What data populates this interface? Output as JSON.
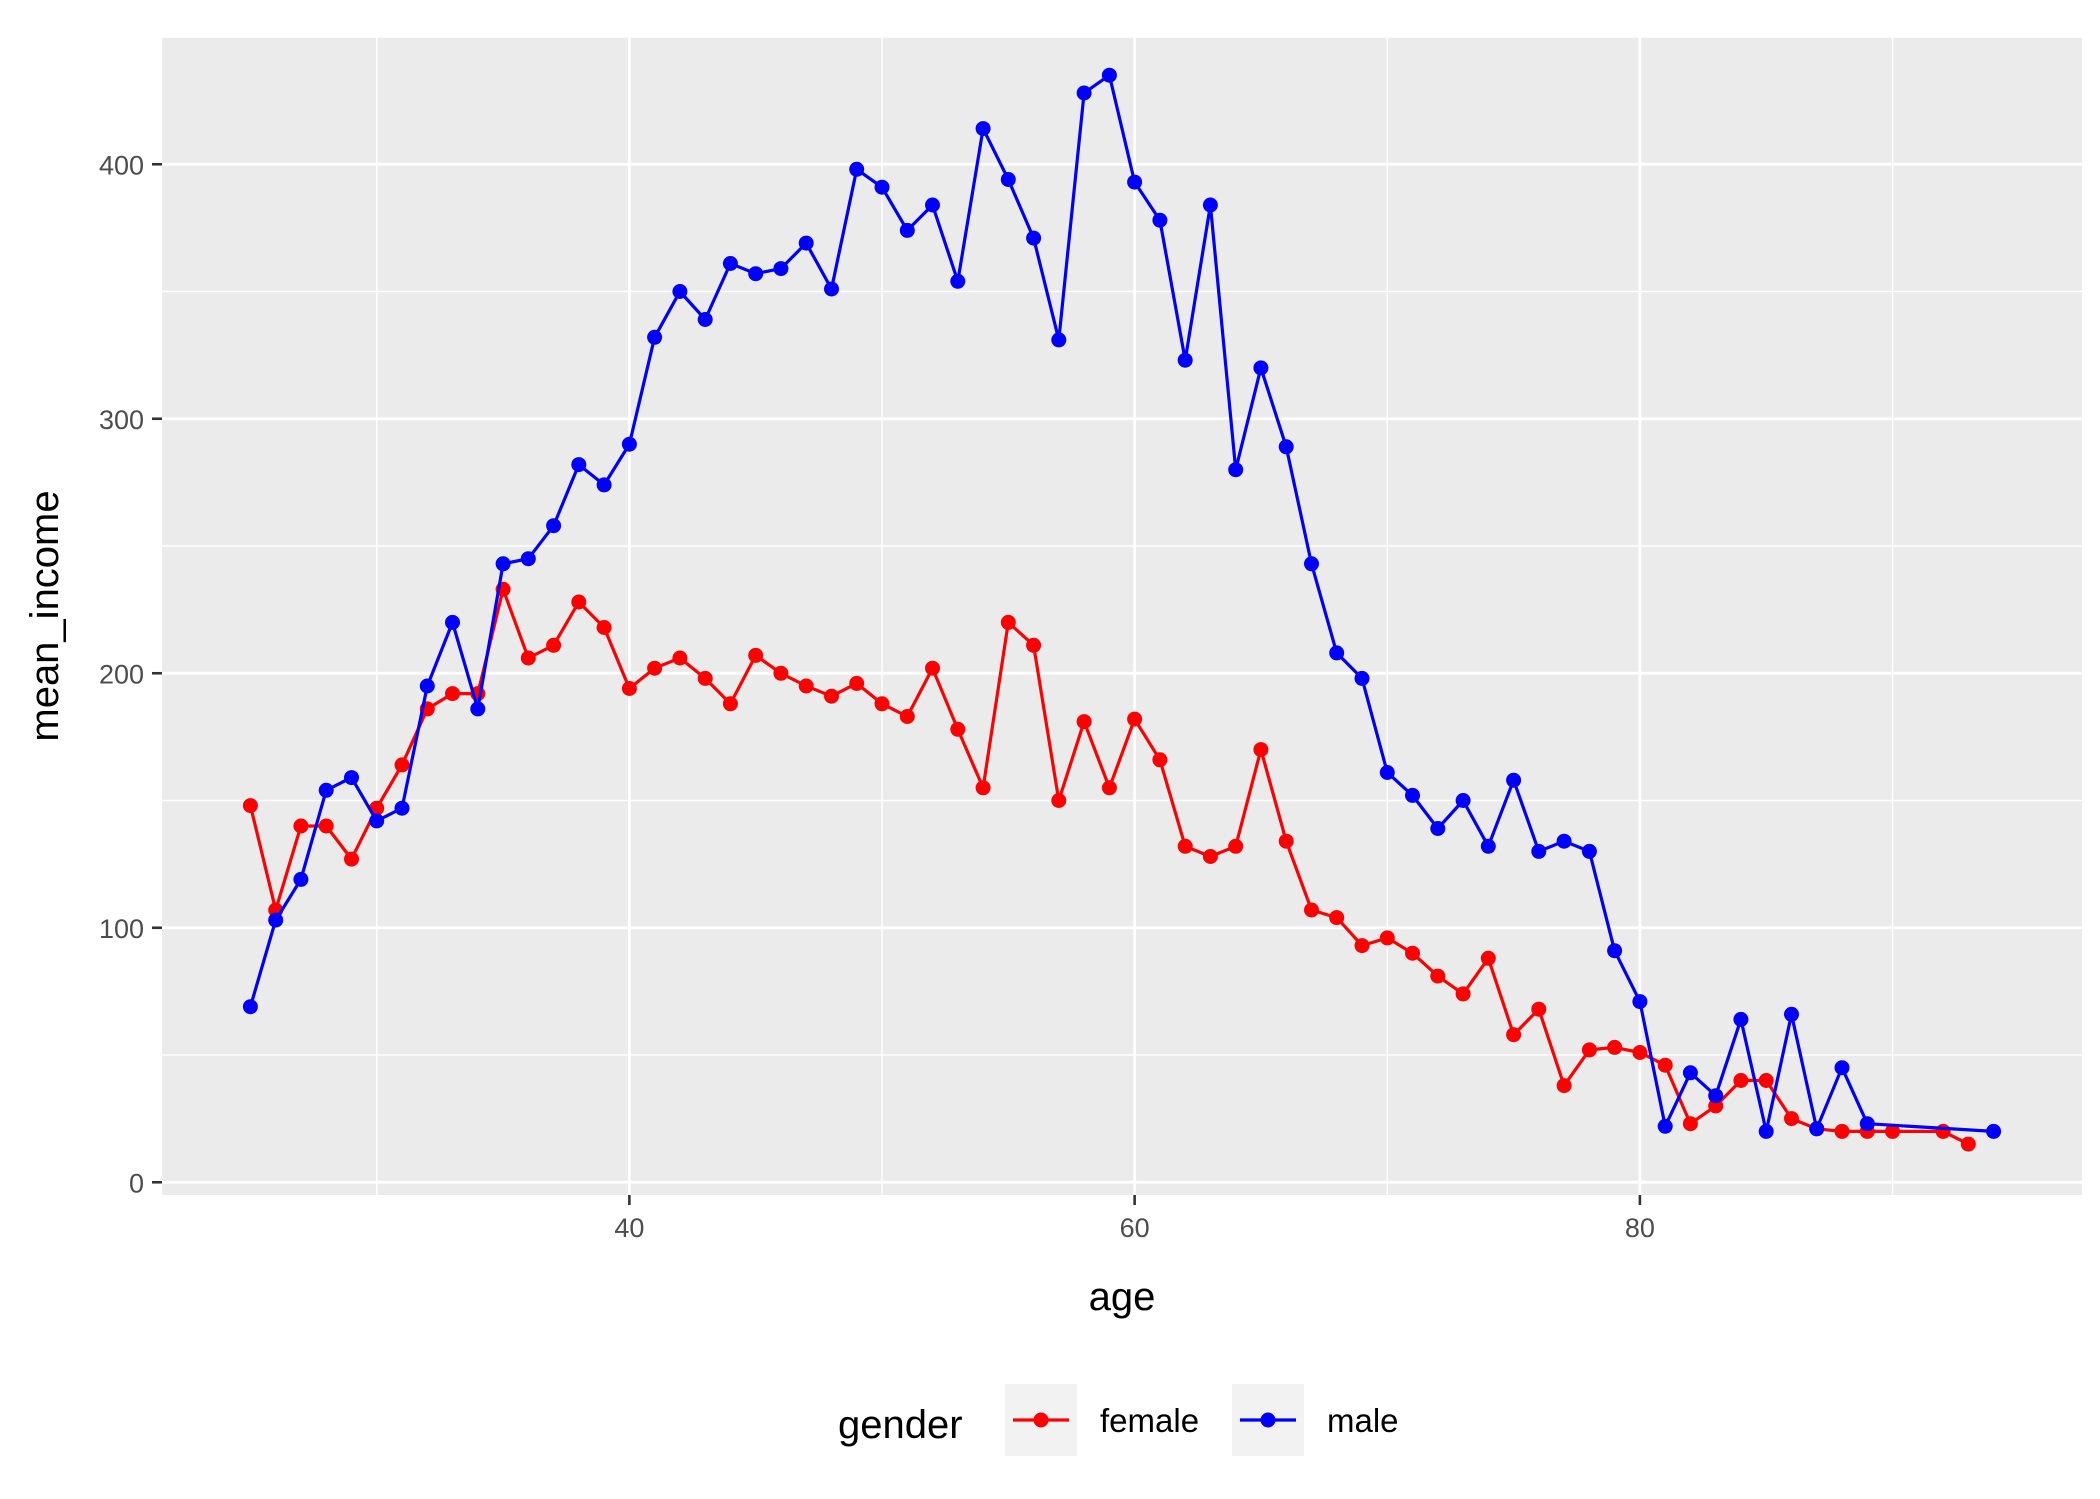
{
  "chart_data": {
    "type": "line",
    "xlabel": "age",
    "ylabel": "mean_income",
    "xlim": [
      21.5,
      97.5
    ],
    "ylim": [
      -5,
      450
    ],
    "x_ticks": [
      40,
      60,
      80
    ],
    "y_ticks": [
      0,
      100,
      200,
      300,
      400
    ],
    "grid": true,
    "legend": {
      "title": "gender",
      "position": "bottom"
    },
    "series": [
      {
        "name": "female",
        "color": "#FF0000",
        "x": [
          25,
          26,
          27,
          28,
          29,
          30,
          31,
          32,
          33,
          34,
          35,
          36,
          37,
          38,
          39,
          40,
          41,
          42,
          43,
          44,
          45,
          46,
          47,
          48,
          49,
          50,
          51,
          52,
          53,
          54,
          55,
          56,
          57,
          58,
          59,
          60,
          61,
          62,
          63,
          64,
          65,
          66,
          67,
          68,
          69,
          70,
          71,
          72,
          73,
          74,
          75,
          76,
          77,
          78,
          79,
          80,
          81,
          82,
          83,
          84,
          85,
          86,
          87,
          88,
          89,
          90,
          92,
          93
        ],
        "y": [
          148,
          107,
          140,
          140,
          127,
          147,
          164,
          186,
          192,
          192,
          233,
          206,
          211,
          228,
          218,
          194,
          202,
          206,
          198,
          188,
          207,
          200,
          195,
          191,
          196,
          188,
          183,
          202,
          178,
          155,
          220,
          211,
          150,
          181,
          155,
          182,
          166,
          132,
          128,
          132,
          170,
          134,
          107,
          104,
          93,
          96,
          90,
          81,
          74,
          88,
          58,
          68,
          38,
          52,
          53,
          51,
          46,
          23,
          30,
          40,
          40,
          25,
          21,
          20,
          20,
          20,
          20,
          15
        ]
      },
      {
        "name": "male",
        "color": "#0000FF",
        "x": [
          25,
          26,
          27,
          28,
          29,
          30,
          31,
          32,
          33,
          34,
          35,
          36,
          37,
          38,
          39,
          40,
          41,
          42,
          43,
          44,
          45,
          46,
          47,
          48,
          49,
          50,
          51,
          52,
          53,
          54,
          55,
          56,
          57,
          58,
          59,
          60,
          61,
          62,
          63,
          64,
          65,
          66,
          67,
          68,
          69,
          70,
          71,
          72,
          73,
          74,
          75,
          76,
          77,
          78,
          79,
          80,
          81,
          82,
          83,
          84,
          85,
          86,
          87,
          88,
          89,
          94
        ],
        "y": [
          69,
          103,
          119,
          154,
          159,
          142,
          147,
          195,
          220,
          186,
          243,
          245,
          258,
          282,
          274,
          290,
          332,
          350,
          339,
          361,
          357,
          359,
          369,
          351,
          398,
          391,
          374,
          384,
          354,
          414,
          394,
          371,
          331,
          428,
          435,
          393,
          378,
          323,
          384,
          280,
          320,
          289,
          243,
          208,
          198,
          161,
          152,
          139,
          150,
          132,
          158,
          130,
          134,
          130,
          91,
          71,
          22,
          43,
          34,
          64,
          20,
          66,
          21,
          45,
          23,
          20
        ]
      }
    ]
  }
}
